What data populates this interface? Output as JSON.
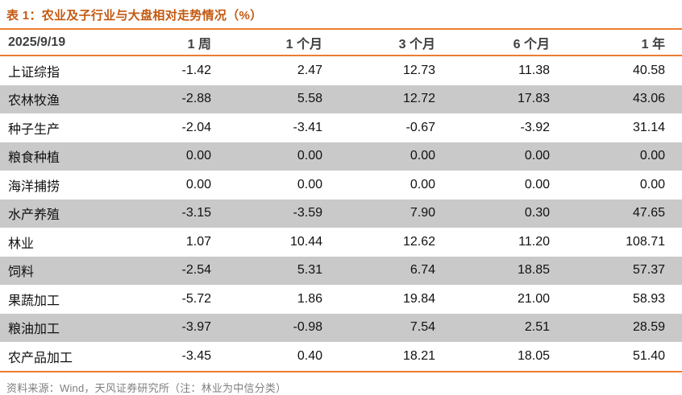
{
  "colors": {
    "divider_orange": "#ED7D31",
    "title_orange": "#C45911",
    "header_text": "#404040",
    "stripe_gray": "#C9C9C9",
    "body_text": "#111111",
    "source_text": "#7F7F7F"
  },
  "chart_data": {
    "type": "table",
    "title": "表 1：农业及子行业与大盘相对走势情况（%）",
    "columns": [
      "2025/9/19",
      "1 周",
      "1 个月",
      "3 个月",
      "6 个月",
      "1 年"
    ],
    "rows": [
      {
        "label": "上证综指",
        "values": [
          -1.42,
          2.47,
          12.73,
          11.38,
          40.58
        ]
      },
      {
        "label": "农林牧渔",
        "values": [
          -2.88,
          5.58,
          12.72,
          17.83,
          43.06
        ]
      },
      {
        "label": "种子生产",
        "values": [
          -2.04,
          -3.41,
          -0.67,
          -3.92,
          31.14
        ]
      },
      {
        "label": "粮食种植",
        "values": [
          0.0,
          0.0,
          0.0,
          0.0,
          0.0
        ]
      },
      {
        "label": "海洋捕捞",
        "values": [
          0.0,
          0.0,
          0.0,
          0.0,
          0.0
        ]
      },
      {
        "label": "水产养殖",
        "values": [
          -3.15,
          -3.59,
          7.9,
          0.3,
          47.65
        ]
      },
      {
        "label": "林业",
        "values": [
          1.07,
          10.44,
          12.62,
          11.2,
          108.71
        ]
      },
      {
        "label": "饲料",
        "values": [
          -2.54,
          5.31,
          6.74,
          18.85,
          57.37
        ]
      },
      {
        "label": "果蔬加工",
        "values": [
          -5.72,
          1.86,
          19.84,
          21.0,
          58.93
        ]
      },
      {
        "label": "粮油加工",
        "values": [
          -3.97,
          -0.98,
          7.54,
          2.51,
          28.59
        ]
      },
      {
        "label": "农产品加工",
        "values": [
          -3.45,
          0.4,
          18.21,
          18.05,
          51.4
        ]
      }
    ],
    "value_format": "2 decimals",
    "source_note": "资料来源：Wind，天风证券研究所（注：林业为中信分类）",
    "layout": {
      "striped_rows": "alternating, 2nd/4th/... rows gray",
      "value_alignment": "right",
      "label_alignment": "left"
    }
  }
}
